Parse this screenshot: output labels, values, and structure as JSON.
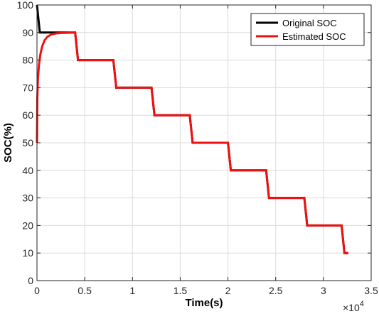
{
  "chart_data": {
    "type": "line",
    "xlabel": "Time(s)",
    "ylabel": "SOC(%)",
    "x_exponent_label": "×10",
    "x_exponent_power": "4",
    "xlim": [
      0,
      35000
    ],
    "ylim": [
      0,
      100
    ],
    "x_ticks": [
      0,
      5000,
      10000,
      15000,
      20000,
      25000,
      30000,
      35000
    ],
    "x_tick_labels": [
      "0",
      "0.5",
      "1",
      "1.5",
      "2",
      "2.5",
      "3",
      "3.5"
    ],
    "y_ticks": [
      0,
      10,
      20,
      30,
      40,
      50,
      60,
      70,
      80,
      90,
      100
    ],
    "y_tick_labels": [
      "0",
      "10",
      "20",
      "30",
      "40",
      "50",
      "60",
      "70",
      "80",
      "90",
      "100"
    ],
    "grid": true,
    "legend_position": "top-right",
    "series": [
      {
        "name": "Original SOC",
        "color": "#000000",
        "x": [
          0,
          300,
          4000,
          4300,
          8000,
          8300,
          12000,
          12300,
          16000,
          16300,
          20000,
          20300,
          24000,
          24300,
          28000,
          28300,
          31900,
          32200,
          32600
        ],
        "y": [
          100,
          90,
          90,
          80,
          80,
          70,
          70,
          60,
          60,
          50,
          50,
          40,
          40,
          30,
          30,
          20,
          20,
          10,
          10
        ]
      },
      {
        "name": "Estimated SOC",
        "color": "#ee1111",
        "x": [
          0,
          40,
          100,
          200,
          350,
          550,
          800,
          1100,
          1500,
          2000,
          2500,
          3000,
          4000,
          4300,
          8000,
          8300,
          12000,
          12300,
          16000,
          16300,
          20000,
          20300,
          24000,
          24300,
          28000,
          28300,
          31900,
          32200,
          32600
        ],
        "y": [
          50,
          66,
          73,
          78,
          82,
          85,
          87.2,
          88.5,
          89.3,
          89.7,
          89.85,
          89.9,
          90,
          80,
          80,
          70,
          70,
          60,
          60,
          50,
          50,
          40,
          40,
          30,
          30,
          20,
          20,
          10,
          10
        ]
      }
    ]
  }
}
